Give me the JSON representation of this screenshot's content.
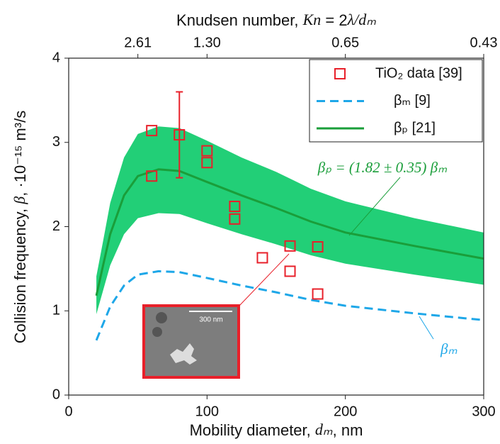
{
  "chart_data": {
    "type": "scatter",
    "x_label": [
      "Mobility diameter, ",
      "dₘ",
      ", nm"
    ],
    "y_label": [
      "Collision frequency, ",
      "β",
      ", ·10⁻¹⁵ m³/s"
    ],
    "x2_label": [
      "Knudsen number, ",
      "Kn",
      " = 2",
      "λ/dₘ"
    ],
    "xlim": [
      0,
      300
    ],
    "ylim": [
      0,
      4
    ],
    "xticks": [
      0,
      100,
      200,
      300
    ],
    "yticks": [
      0,
      1,
      2,
      3,
      4
    ],
    "x2ticks": [
      {
        "value": 50,
        "label": "2.61"
      },
      {
        "value": 100,
        "label": "1.30"
      },
      {
        "value": 200,
        "label": "0.65"
      },
      {
        "value": 300,
        "label": "0.43"
      }
    ],
    "series": [
      {
        "name": "TiO₂ data [39]",
        "type": "scatter",
        "color": "#e8202a",
        "x": [
          60,
          60,
          80,
          100,
          100,
          120,
          120,
          140,
          160,
          160,
          180,
          180
        ],
        "values": [
          3.14,
          2.6,
          3.09,
          2.9,
          2.76,
          2.24,
          2.09,
          1.63,
          1.77,
          1.47,
          1.76,
          1.2
        ],
        "errors": [
          null,
          null,
          0.51,
          null,
          null,
          null,
          null,
          null,
          null,
          null,
          null,
          null
        ]
      },
      {
        "name": "βₘ [9]",
        "type": "line",
        "dashed": true,
        "color": "#1ea7e8",
        "x": [
          20,
          25,
          30,
          40,
          50,
          65,
          80,
          100,
          125,
          150,
          175,
          200,
          250,
          300
        ],
        "values": [
          0.65,
          0.85,
          1.05,
          1.3,
          1.43,
          1.47,
          1.46,
          1.39,
          1.3,
          1.22,
          1.13,
          1.06,
          0.97,
          0.89
        ]
      },
      {
        "name": "βₚ [21]",
        "type": "line",
        "dashed": false,
        "color": "#1a9e3a",
        "x": [
          20,
          25,
          30,
          40,
          50,
          65,
          80,
          100,
          125,
          150,
          175,
          200,
          250,
          300
        ],
        "values": [
          1.18,
          1.55,
          1.91,
          2.37,
          2.6,
          2.68,
          2.66,
          2.53,
          2.37,
          2.22,
          2.06,
          1.93,
          1.77,
          1.62
        ]
      }
    ],
    "band": {
      "color": "#22cf77",
      "x": [
        20,
        25,
        30,
        40,
        50,
        65,
        80,
        100,
        125,
        150,
        175,
        200,
        250,
        300
      ],
      "upper": [
        1.41,
        1.84,
        2.28,
        2.82,
        3.1,
        3.19,
        3.17,
        3.02,
        2.82,
        2.65,
        2.45,
        2.3,
        2.1,
        1.93
      ],
      "lower": [
        0.96,
        1.25,
        1.54,
        1.91,
        2.1,
        2.16,
        2.15,
        2.04,
        1.91,
        1.79,
        1.66,
        1.56,
        1.43,
        1.31
      ]
    },
    "annotations": {
      "fit": "βₚ = (1.82 ± 0.35) βₘ",
      "beta_m": "βₘ",
      "scale_bar": "300 nm"
    }
  }
}
